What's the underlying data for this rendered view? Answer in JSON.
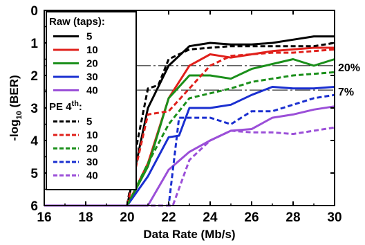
{
  "chart_data": {
    "type": "line",
    "xlabel": "Data Rate (Mb/s)",
    "ylabel_main": "-log",
    "ylabel_sub": "10",
    "ylabel_rest": " (BER)",
    "xlim": [
      16,
      30
    ],
    "ylim": [
      0,
      6
    ],
    "y_inverted": true,
    "xticks": [
      16,
      18,
      20,
      22,
      24,
      26,
      28,
      30
    ],
    "yticks": [
      0,
      1,
      2,
      3,
      4,
      5,
      6
    ],
    "grid": false,
    "legend_position": "top-left",
    "legend_groups": [
      {
        "title": "Raw (taps):",
        "title_sup": ""
      },
      {
        "title": "PE 4",
        "title_sup": "th",
        "title_tail": ":"
      }
    ],
    "reference_lines": [
      {
        "label": "20%",
        "y": 1.7
      },
      {
        "label": "7%",
        "y": 2.45
      }
    ],
    "series": [
      {
        "name": "5",
        "group": 0,
        "color": "#000000",
        "dash": "solid",
        "x": [
          16,
          20,
          20.4,
          21,
          22,
          22.5,
          23,
          24,
          25,
          26,
          27,
          28,
          29,
          30
        ],
        "y": [
          6,
          6,
          4.8,
          3,
          1.7,
          1.4,
          1.1,
          1.0,
          1.05,
          1.05,
          1.0,
          0.9,
          0.8,
          0.8
        ]
      },
      {
        "name": "10",
        "group": 0,
        "color": "#e0201b",
        "dash": "solid",
        "x": [
          16,
          20,
          21,
          22,
          23,
          24,
          24.5,
          25,
          26,
          27,
          28,
          29,
          30
        ],
        "y": [
          6,
          6,
          4.7,
          2.7,
          1.7,
          1.35,
          1.4,
          1.45,
          1.35,
          1.25,
          1.2,
          1.15,
          1.15
        ]
      },
      {
        "name": "20",
        "group": 0,
        "color": "#1a8f1a",
        "dash": "solid",
        "x": [
          16,
          20,
          21,
          22,
          23,
          24,
          25,
          26,
          27,
          28,
          29,
          30
        ],
        "y": [
          6,
          6,
          4.8,
          2.7,
          2.0,
          2.0,
          2.1,
          1.8,
          1.65,
          1.5,
          1.7,
          1.5
        ]
      },
      {
        "name": "30",
        "group": 0,
        "color": "#1a2fd0",
        "dash": "solid",
        "x": [
          16,
          20,
          21,
          22,
          22.5,
          23,
          24,
          25,
          26,
          27,
          28,
          29,
          30
        ],
        "y": [
          6,
          6,
          5.1,
          3.9,
          3.85,
          3.0,
          3.0,
          2.9,
          2.6,
          2.35,
          2.4,
          2.4,
          2.35
        ]
      },
      {
        "name": "40",
        "group": 0,
        "color": "#9b4fd8",
        "dash": "solid",
        "x": [
          16,
          21,
          22,
          23,
          24,
          25,
          26,
          27,
          28,
          29,
          30
        ],
        "y": [
          6,
          6,
          4.9,
          4.35,
          4.0,
          3.7,
          3.65,
          3.3,
          3.2,
          3.05,
          2.95
        ]
      },
      {
        "name": "5",
        "group": 1,
        "color": "#000000",
        "dash": "dashed",
        "x": [
          16,
          20,
          20.5,
          21,
          21.5,
          22,
          23,
          24,
          25,
          26,
          27,
          28,
          29,
          30
        ],
        "y": [
          6,
          6,
          4.0,
          2.4,
          2.3,
          1.5,
          1.2,
          1.15,
          1.1,
          1.1,
          1.1,
          1.1,
          1.1,
          1.0
        ]
      },
      {
        "name": "10",
        "group": 1,
        "color": "#e0201b",
        "dash": "dashed",
        "x": [
          16,
          20,
          21,
          22,
          23,
          24,
          25,
          26,
          27,
          28,
          29,
          30
        ],
        "y": [
          6,
          6,
          3.2,
          3.1,
          2.4,
          1.7,
          1.4,
          1.35,
          1.3,
          1.3,
          1.25,
          1.2
        ]
      },
      {
        "name": "20",
        "group": 1,
        "color": "#1a8f1a",
        "dash": "dashed",
        "x": [
          16,
          20,
          21,
          22,
          23,
          24,
          25,
          26,
          27,
          28,
          29,
          30
        ],
        "y": [
          6,
          6,
          4.7,
          3.5,
          2.7,
          2.55,
          2.4,
          2.2,
          2.1,
          2.0,
          1.95,
          1.9
        ]
      },
      {
        "name": "30",
        "group": 1,
        "color": "#1a2fd0",
        "dash": "dashed",
        "x": [
          16,
          21,
          22,
          22.5,
          23,
          24,
          25,
          26,
          27,
          28,
          29,
          30
        ],
        "y": [
          6,
          6,
          6,
          3.3,
          3.3,
          3.3,
          3.5,
          3.1,
          3.1,
          2.9,
          2.7,
          2.6
        ]
      },
      {
        "name": "40",
        "group": 1,
        "color": "#9b4fd8",
        "dash": "dashed",
        "x": [
          16,
          21.5,
          22.2,
          23,
          24,
          25,
          26,
          27,
          28,
          29,
          30
        ],
        "y": [
          6,
          6,
          6,
          4.6,
          4.0,
          3.7,
          3.75,
          3.75,
          3.8,
          3.7,
          3.6
        ]
      }
    ]
  }
}
